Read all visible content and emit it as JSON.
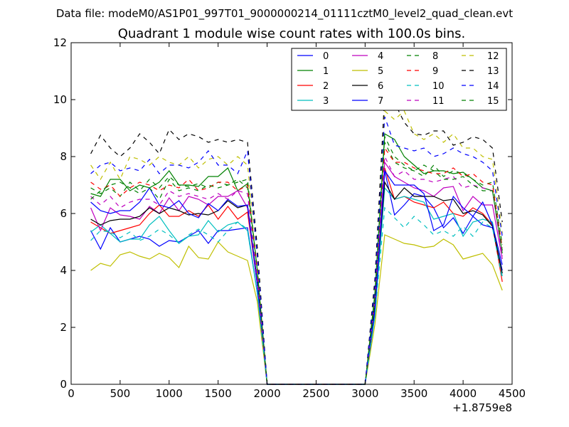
{
  "suptitle": "Data file: modeM0/AS1P01_997T01_9000000214_01111cztM0_level2_quad_clean.evt",
  "chart_data": {
    "type": "line",
    "title": "Quadrant 1 module wise count rates with 100.0s bins.",
    "xlabel": "",
    "ylabel": "",
    "x_offset_label": "+1.8759e8",
    "xlim": [
      0,
      4500
    ],
    "ylim": [
      0,
      12
    ],
    "xticks": [
      0,
      500,
      1000,
      1500,
      2000,
      2500,
      3000,
      3500,
      4000,
      4500
    ],
    "yticks": [
      0,
      2,
      4,
      6,
      8,
      10,
      12
    ],
    "grid": false,
    "legend_position": "top-right",
    "legend_columns": 4,
    "x": [
      200,
      300,
      400,
      500,
      600,
      700,
      800,
      900,
      1000,
      1100,
      1200,
      1300,
      1400,
      1500,
      1600,
      1700,
      1800,
      1900,
      2000,
      2100,
      2200,
      2300,
      2400,
      2500,
      2600,
      2700,
      2800,
      2900,
      3000,
      3100,
      3200,
      3300,
      3400,
      3500,
      3600,
      3700,
      3800,
      3900,
      4000,
      4100,
      4200,
      4300,
      4400
    ],
    "series": [
      {
        "name": "0",
        "color": "#0000ff",
        "style": "solid",
        "values": [
          5.4,
          4.75,
          5.5,
          5.0,
          5.1,
          5.2,
          5.1,
          4.85,
          5.05,
          5.0,
          5.2,
          5.4,
          4.95,
          5.4,
          5.4,
          5.45,
          5.5,
          3.2,
          0,
          0,
          0,
          0,
          0,
          0,
          0,
          0,
          0,
          0,
          0,
          2.5,
          7.5,
          5.95,
          6.3,
          6.7,
          6.6,
          6.2,
          5.5,
          5.85,
          5.3,
          5.9,
          5.6,
          5.5,
          4.0
        ]
      },
      {
        "name": "1",
        "color": "#008000",
        "style": "solid",
        "values": [
          6.7,
          6.6,
          7.2,
          7.2,
          6.8,
          7.0,
          6.9,
          7.1,
          7.5,
          7.0,
          7.0,
          6.95,
          7.3,
          7.3,
          7.6,
          6.8,
          7.05,
          4.0,
          0,
          0,
          0,
          0,
          0,
          0,
          0,
          0,
          0,
          0,
          0,
          3.2,
          8.8,
          8.6,
          8.0,
          7.7,
          7.4,
          7.5,
          7.5,
          7.4,
          7.45,
          7.2,
          6.9,
          6.8,
          4.6
        ]
      },
      {
        "name": "2",
        "color": "#ff0000",
        "style": "solid",
        "values": [
          5.7,
          5.5,
          5.3,
          5.4,
          5.5,
          5.6,
          6.0,
          6.3,
          5.9,
          5.9,
          6.1,
          5.9,
          6.3,
          5.8,
          6.25,
          5.8,
          6.05,
          3.5,
          0,
          0,
          0,
          0,
          0,
          0,
          0,
          0,
          0,
          0,
          0,
          2.7,
          7.6,
          6.5,
          6.6,
          6.4,
          6.3,
          6.2,
          6.4,
          6.0,
          5.9,
          6.2,
          6.0,
          5.6,
          3.6
        ]
      },
      {
        "name": "3",
        "color": "#00bfbf",
        "style": "solid",
        "values": [
          5.35,
          5.6,
          5.3,
          5.0,
          5.1,
          5.1,
          5.6,
          5.9,
          5.4,
          4.95,
          5.2,
          5.25,
          5.75,
          5.35,
          5.6,
          5.7,
          5.4,
          3.2,
          0,
          0,
          0,
          0,
          0,
          0,
          0,
          0,
          0,
          0,
          0,
          2.4,
          6.9,
          6.5,
          6.6,
          6.5,
          6.4,
          5.8,
          5.9,
          6.0,
          5.2,
          5.7,
          5.8,
          5.7,
          3.8
        ]
      },
      {
        "name": "4",
        "color": "#bf00bf",
        "style": "solid",
        "values": [
          6.2,
          5.4,
          6.2,
          5.95,
          5.9,
          5.8,
          6.25,
          6.0,
          6.55,
          6.1,
          6.6,
          6.5,
          6.3,
          6.6,
          6.6,
          6.8,
          6.2,
          3.5,
          0,
          0,
          0,
          0,
          0,
          0,
          0,
          0,
          0,
          0,
          0,
          2.8,
          7.8,
          7.3,
          7.1,
          6.9,
          6.8,
          6.6,
          6.9,
          6.95,
          6.1,
          6.6,
          6.3,
          6.3,
          4.4
        ]
      },
      {
        "name": "5",
        "color": "#bfbf00",
        "style": "solid",
        "values": [
          4.0,
          4.25,
          4.15,
          4.55,
          4.65,
          4.5,
          4.4,
          4.6,
          4.45,
          4.1,
          4.85,
          4.45,
          4.4,
          5.0,
          4.65,
          4.5,
          4.35,
          2.9,
          0,
          0,
          0,
          0,
          0,
          0,
          0,
          0,
          0,
          0,
          0,
          2.1,
          5.25,
          5.1,
          4.95,
          4.9,
          4.8,
          4.85,
          5.1,
          4.9,
          4.4,
          4.5,
          4.6,
          4.2,
          3.3
        ]
      },
      {
        "name": "6",
        "color": "#000000",
        "style": "solid",
        "values": [
          5.8,
          5.6,
          5.75,
          5.8,
          5.8,
          5.9,
          6.2,
          6.0,
          6.2,
          6.1,
          5.95,
          6.0,
          5.95,
          6.1,
          6.45,
          6.2,
          6.3,
          3.6,
          0,
          0,
          0,
          0,
          0,
          0,
          0,
          0,
          0,
          0,
          0,
          2.8,
          7.1,
          6.5,
          6.9,
          6.6,
          6.6,
          6.6,
          6.45,
          6.5,
          6.0,
          6.1,
          5.95,
          5.55,
          3.9
        ]
      },
      {
        "name": "7",
        "color": "#0000ff",
        "style": "solid",
        "values": [
          6.4,
          6.1,
          6.0,
          6.1,
          6.1,
          6.4,
          6.9,
          6.3,
          6.2,
          6.45,
          6.0,
          5.85,
          6.35,
          6.1,
          6.5,
          6.25,
          6.3,
          3.5,
          0,
          0,
          0,
          0,
          0,
          0,
          0,
          0,
          0,
          0,
          0,
          2.6,
          7.5,
          7.0,
          7.0,
          7.0,
          6.7,
          5.4,
          5.6,
          6.6,
          6.2,
          5.9,
          6.4,
          5.6,
          4.2
        ]
      },
      {
        "name": "8",
        "color": "#008000",
        "style": "dashed",
        "values": [
          6.9,
          6.7,
          6.9,
          6.6,
          7.1,
          6.8,
          7.2,
          6.9,
          7.3,
          7.0,
          6.95,
          7.05,
          6.9,
          7.1,
          7.0,
          7.2,
          6.9,
          4.0,
          0,
          0,
          0,
          0,
          0,
          0,
          0,
          0,
          0,
          0,
          0,
          3.1,
          8.5,
          7.8,
          7.6,
          7.5,
          7.3,
          7.7,
          7.3,
          7.5,
          7.4,
          7.2,
          7.0,
          7.1,
          4.9
        ]
      },
      {
        "name": "9",
        "color": "#ff0000",
        "style": "dashed",
        "values": [
          7.1,
          6.85,
          7.0,
          6.6,
          6.9,
          7.1,
          7.0,
          6.8,
          7.0,
          6.9,
          7.2,
          6.8,
          6.9,
          7.1,
          7.1,
          6.8,
          7.0,
          4.1,
          0,
          0,
          0,
          0,
          0,
          0,
          0,
          0,
          0,
          0,
          0,
          3.0,
          8.3,
          7.8,
          7.8,
          7.6,
          7.5,
          7.4,
          7.4,
          7.6,
          7.3,
          7.4,
          7.1,
          7.0,
          4.8
        ]
      },
      {
        "name": "10",
        "color": "#00bfbf",
        "style": "dashed",
        "values": [
          5.05,
          5.4,
          5.35,
          5.15,
          5.35,
          5.05,
          5.2,
          5.45,
          5.25,
          4.95,
          5.25,
          5.45,
          5.25,
          5.0,
          5.4,
          5.7,
          5.45,
          3.2,
          0,
          0,
          0,
          0,
          0,
          0,
          0,
          0,
          0,
          0,
          0,
          2.4,
          6.2,
          5.85,
          5.5,
          5.9,
          5.6,
          5.25,
          5.4,
          5.2,
          5.55,
          5.2,
          5.7,
          5.5,
          3.7
        ]
      },
      {
        "name": "11",
        "color": "#bf00bf",
        "style": "dashed",
        "values": [
          6.6,
          6.3,
          6.6,
          6.2,
          6.4,
          6.5,
          6.5,
          6.3,
          6.8,
          6.6,
          6.7,
          6.6,
          6.5,
          6.7,
          6.5,
          6.8,
          6.7,
          3.7,
          0,
          0,
          0,
          0,
          0,
          0,
          0,
          0,
          0,
          0,
          0,
          2.9,
          8.0,
          7.3,
          7.5,
          7.2,
          7.2,
          7.1,
          7.2,
          7.3,
          6.9,
          7.0,
          6.9,
          6.8,
          4.5
        ]
      },
      {
        "name": "12",
        "color": "#bfbf00",
        "style": "dashed",
        "values": [
          7.7,
          7.2,
          7.8,
          7.2,
          8.0,
          7.9,
          7.7,
          8.0,
          7.8,
          7.7,
          8.0,
          7.6,
          7.9,
          8.0,
          7.7,
          8.0,
          7.7,
          4.5,
          0,
          0,
          0,
          0,
          0,
          0,
          0,
          0,
          0,
          0,
          0,
          3.5,
          9.6,
          9.3,
          9.6,
          8.8,
          8.6,
          8.8,
          8.5,
          8.8,
          8.3,
          8.3,
          8.0,
          7.9,
          5.3
        ]
      },
      {
        "name": "13",
        "color": "#000000",
        "style": "dashed",
        "values": [
          8.1,
          8.75,
          8.3,
          8.0,
          8.3,
          8.8,
          8.5,
          8.1,
          8.95,
          8.6,
          8.8,
          8.7,
          8.5,
          8.6,
          8.5,
          8.6,
          8.5,
          4.8,
          0,
          0,
          0,
          0,
          0,
          0,
          0,
          0,
          0,
          0,
          0,
          3.7,
          10.15,
          9.9,
          9.2,
          8.8,
          8.75,
          8.9,
          8.9,
          8.4,
          8.5,
          8.7,
          8.6,
          8.3,
          5.7
        ]
      },
      {
        "name": "14",
        "color": "#0000ff",
        "style": "dashed",
        "values": [
          7.4,
          7.7,
          7.8,
          7.5,
          7.6,
          7.5,
          7.9,
          7.4,
          7.7,
          7.7,
          7.6,
          7.8,
          8.2,
          7.7,
          7.7,
          7.4,
          8.2,
          4.5,
          0,
          0,
          0,
          0,
          0,
          0,
          0,
          0,
          0,
          0,
          0,
          3.4,
          9.4,
          8.4,
          8.3,
          8.2,
          8.3,
          8.0,
          8.1,
          8.3,
          8.1,
          8.0,
          7.8,
          7.5,
          5.2
        ]
      },
      {
        "name": "15",
        "color": "#008000",
        "style": "dashed",
        "values": [
          6.5,
          6.8,
          7.0,
          7.1,
          6.9,
          6.7,
          6.9,
          6.5,
          7.2,
          6.8,
          6.9,
          6.8,
          7.0,
          6.9,
          7.0,
          7.1,
          7.2,
          4.0,
          0,
          0,
          0,
          0,
          0,
          0,
          0,
          0,
          0,
          0,
          0,
          3.0,
          8.7,
          8.0,
          7.7,
          7.5,
          7.7,
          7.5,
          7.2,
          7.2,
          7.3,
          7.0,
          6.8,
          6.8,
          4.7
        ]
      }
    ]
  }
}
